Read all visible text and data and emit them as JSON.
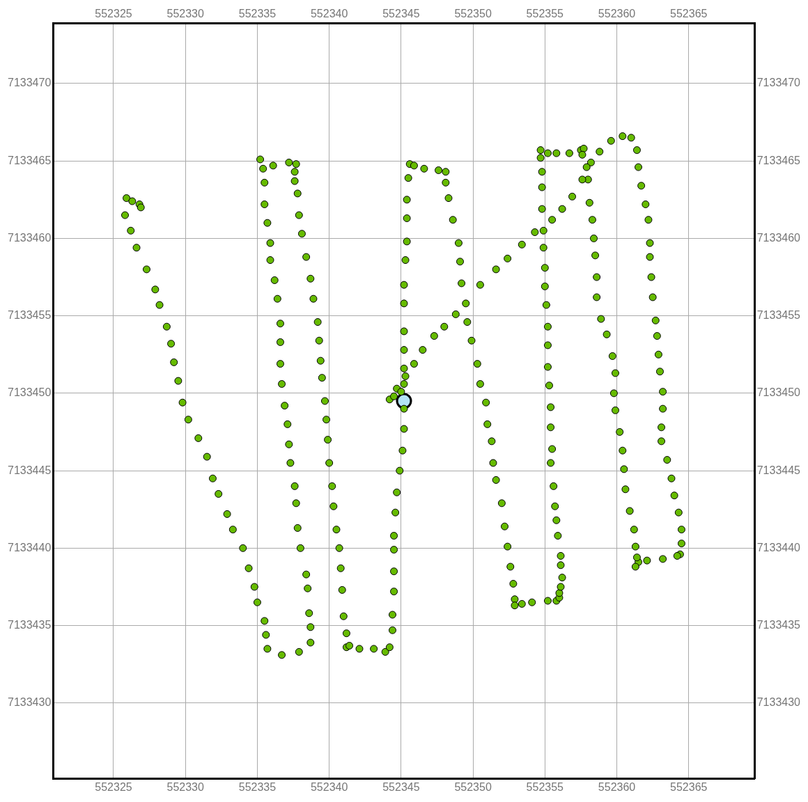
{
  "chart_data": {
    "type": "scatter",
    "xlim": [
      552320.8,
      552369.6
    ],
    "ylim": [
      7133425.1,
      7133473.9
    ],
    "xticks": [
      552325,
      552330,
      552335,
      552340,
      552345,
      552350,
      552355,
      552360,
      552365
    ],
    "yticks": [
      7133430,
      7133435,
      7133440,
      7133445,
      7133450,
      7133455,
      7133460,
      7133465,
      7133470
    ],
    "x2lim": [
      552320.8,
      552369.6
    ],
    "x2ticks": [
      552325,
      552330,
      552335,
      552340,
      552345,
      552350,
      552355,
      552360,
      552365
    ],
    "y2lim": [
      7133425.1,
      7133473.9
    ],
    "y2ticks": [
      7133430,
      7133435,
      7133440,
      7133445,
      7133450,
      7133455,
      7133460,
      7133465,
      7133470
    ],
    "grid": true,
    "marker": "circle",
    "series": [
      {
        "color": "#66bb00",
        "x": [
          552325.9,
          552326.3,
          552326.8,
          552326.9,
          552325.8,
          552326.2,
          552326.6,
          552327.3,
          552327.9,
          552328.2,
          552328.7,
          552329.0,
          552329.2,
          552329.5,
          552329.8,
          552330.2,
          552330.9,
          552331.5,
          552331.9,
          552332.3,
          552332.9,
          552333.3,
          552334.0,
          552334.4,
          552334.8,
          552335.0,
          552335.5,
          552335.6,
          552335.7,
          552336.7,
          552337.9,
          552338.7,
          552338.7,
          552338.6,
          552338.5,
          552338.4,
          552338.0,
          552337.8,
          552337.7,
          552337.6,
          552337.3,
          552337.2,
          552337.1,
          552336.9,
          552336.7,
          552336.6,
          552336.6,
          552336.6,
          552336.4,
          552336.2,
          552335.9,
          552335.9,
          552335.7,
          552335.5,
          552335.5,
          552335.4,
          552335.2,
          552336.1,
          552337.2,
          552337.7,
          552337.6,
          552337.6,
          552337.8,
          552337.9,
          552338.1,
          552338.4,
          552338.7,
          552338.9,
          552339.2,
          552339.3,
          552339.4,
          552339.5,
          552339.7,
          552339.8,
          552339.9,
          552340.0,
          552340.2,
          552340.3,
          552340.5,
          552340.7,
          552340.8,
          552340.9,
          552341.0,
          552341.2,
          552341.2,
          552341.4,
          552342.1,
          552343.1,
          552343.9,
          552344.2,
          552344.4,
          552344.4,
          552344.5,
          552344.5,
          552344.5,
          552344.5,
          552344.6,
          552344.7,
          552344.9,
          552345.1,
          552345.2,
          552345.2,
          552345.2,
          552345.2,
          552345.2,
          552345.2,
          552345.2,
          552345.2,
          552345.3,
          552345.4,
          552345.4,
          552345.4,
          552345.5,
          552345.6,
          552345.9,
          552346.6,
          552347.6,
          552348.1,
          552348.1,
          552348.3,
          552348.6,
          552349.0,
          552349.1,
          552349.2,
          552349.5,
          552349.6,
          552349.9,
          552350.3,
          552350.5,
          552350.9,
          552351.0,
          552351.3,
          552351.4,
          552351.6,
          552352.0,
          552352.2,
          552352.4,
          552352.6,
          552352.8,
          552352.9,
          552352.9,
          552353.4,
          552354.1,
          552355.2,
          552355.8,
          552356.0,
          552356.0,
          552356.1,
          552356.2,
          552356.1,
          552356.1,
          552355.9,
          552355.8,
          552355.7,
          552355.6,
          552355.4,
          552355.5,
          552355.4,
          552355.4,
          552355.3,
          552355.2,
          552355.2,
          552355.2,
          552355.1,
          552355.0,
          552355.0,
          552354.9,
          552354.9,
          552354.8,
          552354.8,
          552354.8,
          552354.7,
          552354.7,
          552355.2,
          552355.8,
          552356.7,
          552357.5,
          552357.7,
          552357.6,
          552358.2,
          552358.8,
          552359.6,
          552360.4,
          552361.0,
          552361.4,
          552361.5,
          552361.7,
          552362.0,
          552362.2,
          552362.3,
          552362.3,
          552362.4,
          552362.5,
          552362.7,
          552362.8,
          552362.9,
          552363.0,
          552363.2,
          552363.2,
          552363.1,
          552363.1,
          552363.5,
          552363.8,
          552364.0,
          552364.3,
          552364.5,
          552364.5,
          552364.4,
          552364.2,
          552363.2,
          552362.1,
          552361.5,
          552361.3,
          552361.4,
          552361.3,
          552361.2,
          552360.9,
          552360.6,
          552360.5,
          552360.4,
          552360.2,
          552359.9,
          552359.8,
          552359.9,
          552359.7,
          552359.3,
          552358.9,
          552358.6,
          552358.6,
          552358.5,
          552358.4,
          552358.3,
          552358.1,
          552358.0,
          552357.9,
          552357.6,
          552356.9,
          552356.2,
          552355.5,
          552354.3,
          552353.4,
          552352.4,
          552351.6,
          552350.5,
          552348.8,
          552348.0,
          552347.3,
          552346.5,
          552345.9,
          552345.3,
          552344.7,
          552344.2,
          552344.5,
          552345.0
        ],
        "values": [
          7133462.6,
          7133462.4,
          7133462.2,
          7133462.0,
          7133461.5,
          7133460.5,
          7133459.4,
          7133458.0,
          7133456.7,
          7133455.7,
          7133454.3,
          7133453.2,
          7133452.0,
          7133450.8,
          7133449.4,
          7133448.3,
          7133447.1,
          7133445.9,
          7133444.5,
          7133443.5,
          7133442.2,
          7133441.2,
          7133440.0,
          7133438.7,
          7133437.5,
          7133436.5,
          7133435.3,
          7133434.4,
          7133433.5,
          7133433.1,
          7133433.3,
          7133433.9,
          7133434.9,
          7133435.8,
          7133437.4,
          7133438.3,
          7133440.0,
          7133441.3,
          7133442.9,
          7133444.0,
          7133445.5,
          7133446.7,
          7133448.0,
          7133449.2,
          7133450.6,
          7133451.9,
          7133453.3,
          7133454.5,
          7133456.1,
          7133457.3,
          7133458.6,
          7133459.7,
          7133461.0,
          7133462.2,
          7133463.6,
          7133464.5,
          7133465.1,
          7133464.7,
          7133464.9,
          7133464.8,
          7133464.3,
          7133463.7,
          7133462.9,
          7133461.5,
          7133460.3,
          7133458.8,
          7133457.4,
          7133456.1,
          7133454.6,
          7133453.4,
          7133452.1,
          7133451.0,
          7133449.5,
          7133448.3,
          7133447.0,
          7133445.5,
          7133444.0,
          7133442.7,
          7133441.2,
          7133440.0,
          7133438.7,
          7133437.3,
          7133435.6,
          7133434.5,
          7133433.6,
          7133433.7,
          7133433.5,
          7133433.5,
          7133433.3,
          7133433.6,
          7133434.7,
          7133435.7,
          7133437.2,
          7133438.5,
          7133439.9,
          7133440.8,
          7133442.3,
          7133443.6,
          7133445.0,
          7133446.3,
          7133447.7,
          7133449.0,
          7133450.6,
          7133451.6,
          7133452.8,
          7133454.0,
          7133455.8,
          7133457.0,
          7133458.6,
          7133459.8,
          7133461.3,
          7133462.5,
          7133463.9,
          7133464.8,
          7133464.7,
          7133464.5,
          7133464.4,
          7133464.3,
          7133463.6,
          7133462.6,
          7133461.2,
          7133459.7,
          7133458.5,
          7133457.1,
          7133455.8,
          7133454.6,
          7133453.4,
          7133451.9,
          7133450.6,
          7133449.4,
          7133448.0,
          7133446.9,
          7133445.5,
          7133444.4,
          7133442.9,
          7133441.4,
          7133440.1,
          7133438.8,
          7133437.7,
          7133436.7,
          7133436.3,
          7133436.4,
          7133436.5,
          7133436.6,
          7133436.6,
          7133436.8,
          7133437.1,
          7133437.5,
          7133438.1,
          7133438.9,
          7133439.5,
          7133440.8,
          7133441.8,
          7133442.7,
          7133444.0,
          7133445.5,
          7133446.4,
          7133447.8,
          7133449.1,
          7133450.5,
          7133451.7,
          7133453.1,
          7133454.3,
          7133455.7,
          7133456.9,
          7133458.1,
          7133459.4,
          7133460.5,
          7133461.9,
          7133463.3,
          7133464.3,
          7133465.2,
          7133465.7,
          7133465.5,
          7133465.5,
          7133465.5,
          7133465.7,
          7133465.8,
          7133465.4,
          7133464.9,
          7133465.6,
          7133466.3,
          7133466.6,
          7133466.5,
          7133465.7,
          7133464.6,
          7133463.4,
          7133462.2,
          7133461.2,
          7133459.7,
          7133458.8,
          7133457.5,
          7133456.2,
          7133454.7,
          7133453.7,
          7133452.5,
          7133451.4,
          7133450.1,
          7133449.0,
          7133447.8,
          7133446.9,
          7133445.7,
          7133444.5,
          7133443.4,
          7133442.3,
          7133441.2,
          7133440.3,
          7133439.6,
          7133439.5,
          7133439.3,
          7133439.2,
          7133439.1,
          7133438.8,
          7133439.4,
          7133440.1,
          7133441.2,
          7133442.4,
          7133443.8,
          7133445.1,
          7133446.3,
          7133447.5,
          7133448.9,
          7133450.0,
          7133451.3,
          7133452.4,
          7133453.8,
          7133454.8,
          7133456.2,
          7133457.5,
          7133458.9,
          7133460.0,
          7133461.2,
          7133462.3,
          7133463.8,
          7133464.6,
          7133463.8,
          7133462.7,
          7133461.9,
          7133461.2,
          7133460.4,
          7133459.6,
          7133458.7,
          7133458.0,
          7133457.0,
          7133455.1,
          7133454.3,
          7133453.7,
          7133452.8,
          7133451.9,
          7133451.1,
          7133450.3,
          7133449.6,
          7133449.8,
          7133450.1
        ]
      },
      {
        "color": "#b3e3f5",
        "x": [
          552345.2
        ],
        "values": [
          7133449.5
        ]
      }
    ]
  }
}
